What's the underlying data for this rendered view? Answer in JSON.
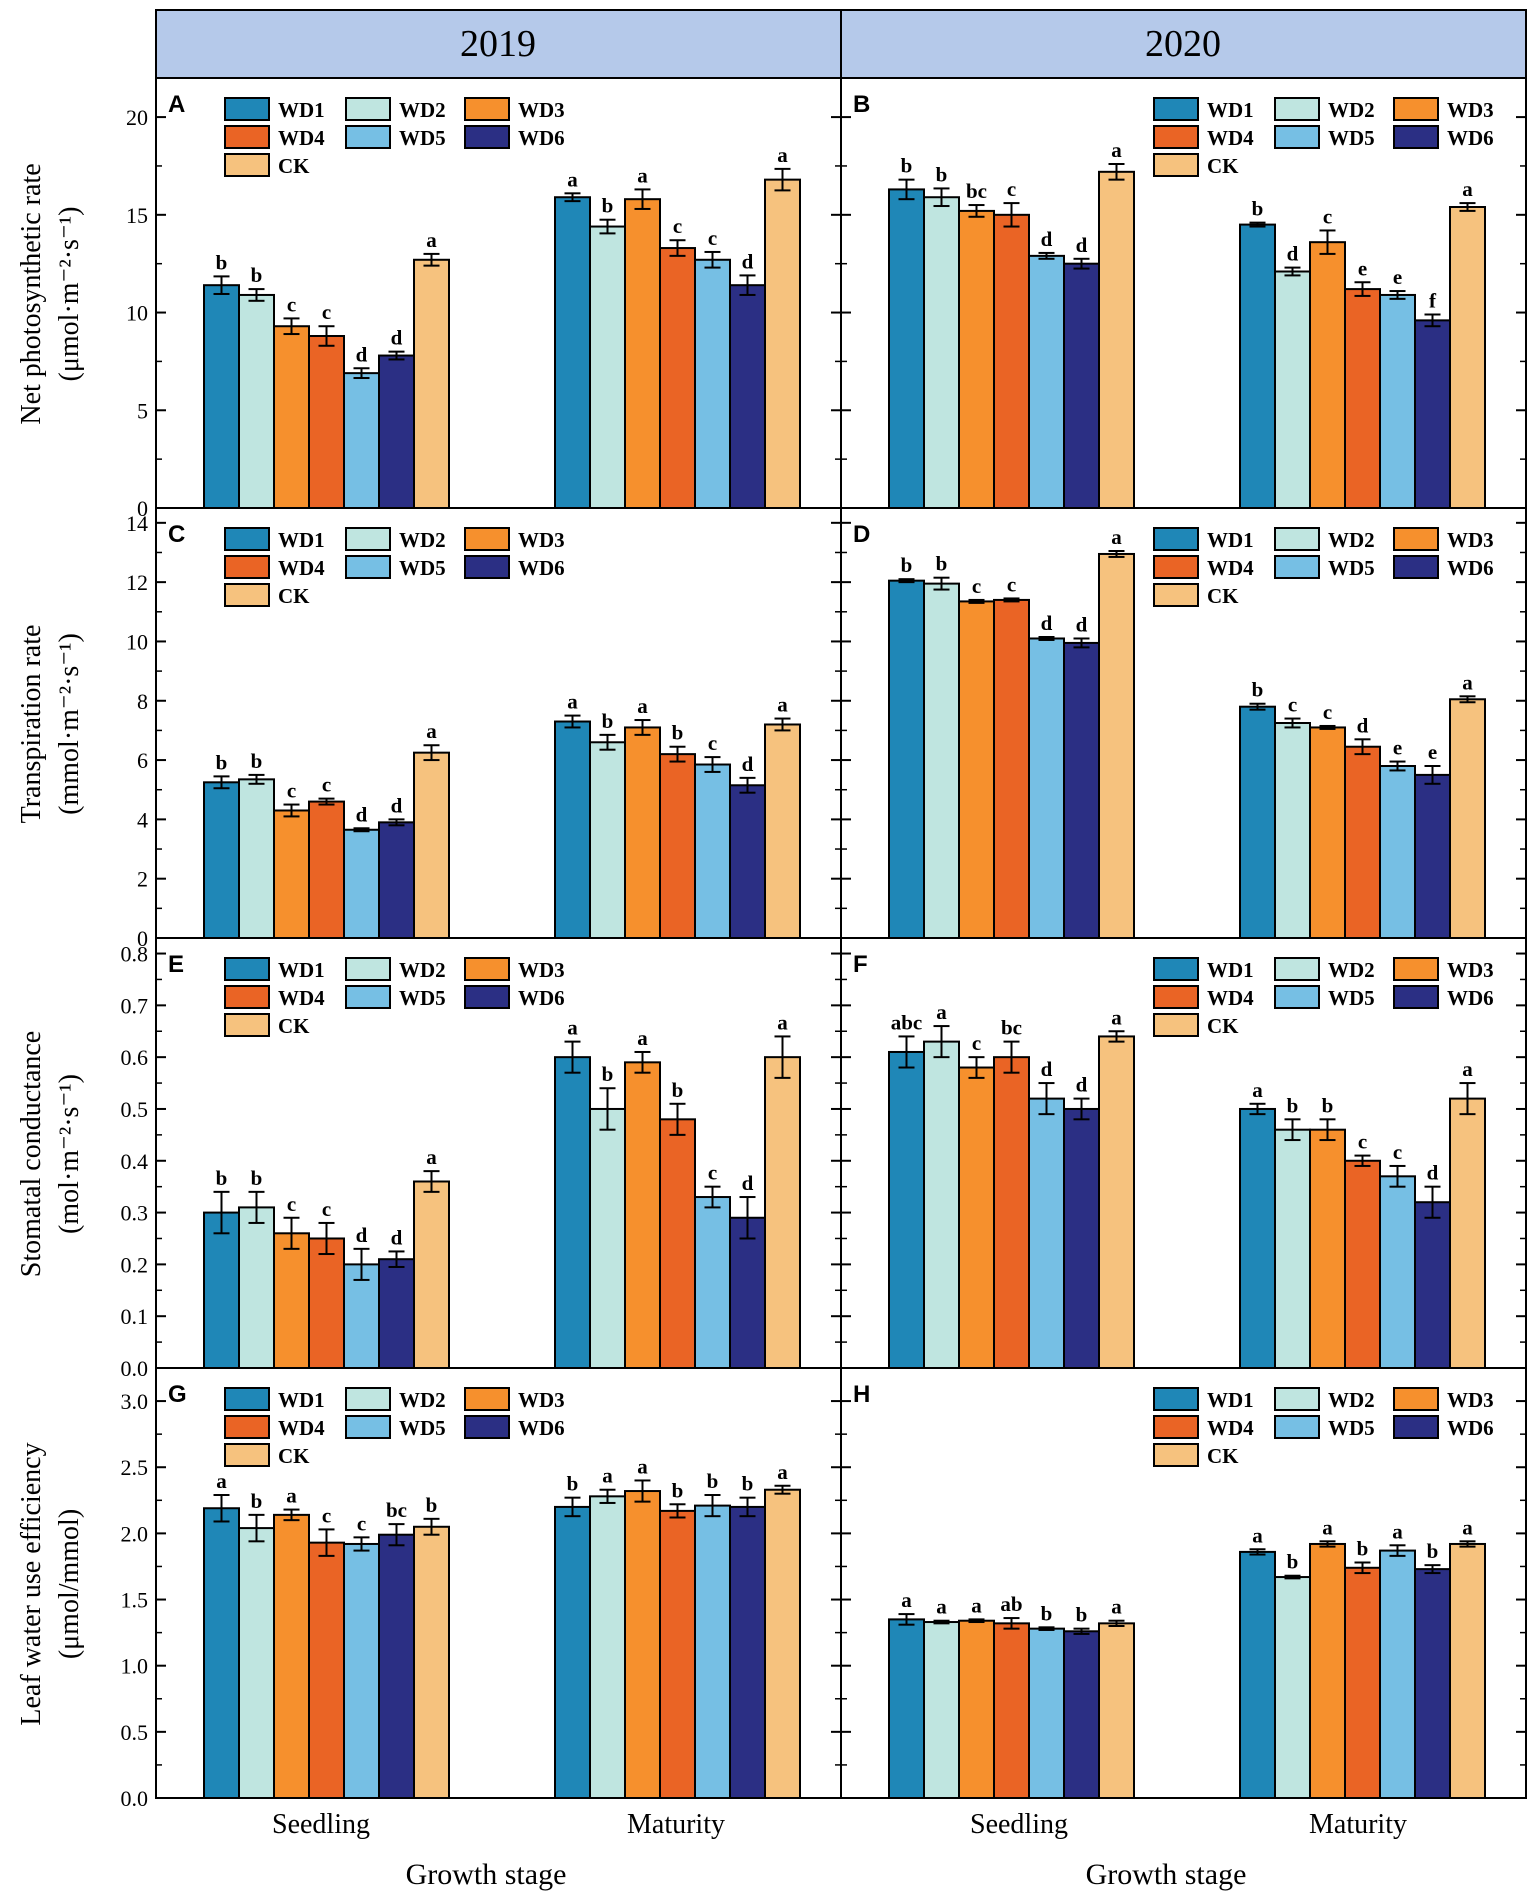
{
  "figure": {
    "headers": [
      "2019",
      "2020"
    ],
    "x_title": "Growth stage",
    "categories": [
      "Seedling",
      "Maturity"
    ],
    "y_titles": [
      [
        "Net photosynthetic rate",
        "(μmol·m⁻²·s⁻¹)"
      ],
      [
        "Transpiration rate",
        "(mmol·m⁻²·s⁻¹)"
      ],
      [
        "Stomatal conductance",
        "(mol·m⁻²·s⁻¹)"
      ],
      [
        "Leaf water use efficiency",
        "(μmol/mmol)"
      ]
    ],
    "legend": [
      "WD1",
      "WD2",
      "WD3",
      "WD4",
      "WD5",
      "WD6",
      "CK"
    ],
    "colors": {
      "WD1": "#1f87b7",
      "WD2": "#bfe5e0",
      "WD3": "#f6902d",
      "WD4": "#ea6425",
      "WD5": "#76bfe4",
      "WD6": "#2b2f84",
      "CK": "#f6c27e",
      "header_bg": "#b5c9ea"
    }
  },
  "chart_data": [
    {
      "panel": "A",
      "type": "bar",
      "year": "2019",
      "metric": "Net photosynthetic rate",
      "ylim": [
        0,
        22
      ],
      "yticks": [
        0,
        5,
        10,
        15,
        20
      ],
      "categories": [
        "Seedling",
        "Maturity"
      ],
      "series": [
        {
          "name": "WD1",
          "values": [
            11.4,
            15.9
          ],
          "errors": [
            0.45,
            0.2
          ],
          "letters": [
            "b",
            "a"
          ]
        },
        {
          "name": "WD2",
          "values": [
            10.9,
            14.4
          ],
          "errors": [
            0.3,
            0.35
          ],
          "letters": [
            "b",
            "b"
          ]
        },
        {
          "name": "WD3",
          "values": [
            9.3,
            15.8
          ],
          "errors": [
            0.4,
            0.5
          ],
          "letters": [
            "c",
            "a"
          ]
        },
        {
          "name": "WD4",
          "values": [
            8.8,
            13.3
          ],
          "errors": [
            0.5,
            0.4
          ],
          "letters": [
            "c",
            "c"
          ]
        },
        {
          "name": "WD5",
          "values": [
            6.9,
            12.7
          ],
          "errors": [
            0.25,
            0.4
          ],
          "letters": [
            "d",
            "c"
          ]
        },
        {
          "name": "WD6",
          "values": [
            7.8,
            11.4
          ],
          "errors": [
            0.2,
            0.5
          ],
          "letters": [
            "d",
            "d"
          ]
        },
        {
          "name": "CK",
          "values": [
            12.7,
            16.8
          ],
          "errors": [
            0.3,
            0.55
          ],
          "letters": [
            "a",
            "a"
          ]
        }
      ]
    },
    {
      "panel": "B",
      "type": "bar",
      "year": "2020",
      "metric": "Net photosynthetic rate",
      "ylim": [
        0,
        22
      ],
      "yticks": [
        0,
        5,
        10,
        15,
        20
      ],
      "categories": [
        "Seedling",
        "Maturity"
      ],
      "series": [
        {
          "name": "WD1",
          "values": [
            16.3,
            14.5
          ],
          "errors": [
            0.5,
            0.1
          ],
          "letters": [
            "b",
            "b"
          ]
        },
        {
          "name": "WD2",
          "values": [
            15.9,
            12.1
          ],
          "errors": [
            0.45,
            0.2
          ],
          "letters": [
            "b",
            "d"
          ]
        },
        {
          "name": "WD3",
          "values": [
            15.2,
            13.6
          ],
          "errors": [
            0.3,
            0.6
          ],
          "letters": [
            "bc",
            "c"
          ]
        },
        {
          "name": "WD4",
          "values": [
            15.0,
            11.2
          ],
          "errors": [
            0.6,
            0.35
          ],
          "letters": [
            "c",
            "e"
          ]
        },
        {
          "name": "WD5",
          "values": [
            12.9,
            10.9
          ],
          "errors": [
            0.15,
            0.2
          ],
          "letters": [
            "d",
            "e"
          ]
        },
        {
          "name": "WD6",
          "values": [
            12.5,
            9.6
          ],
          "errors": [
            0.25,
            0.3
          ],
          "letters": [
            "d",
            "f"
          ]
        },
        {
          "name": "CK",
          "values": [
            17.2,
            15.4
          ],
          "errors": [
            0.4,
            0.2
          ],
          "letters": [
            "a",
            "a"
          ]
        }
      ]
    },
    {
      "panel": "C",
      "type": "bar",
      "year": "2019",
      "metric": "Transpiration rate",
      "ylim": [
        0,
        14.5
      ],
      "yticks": [
        0,
        2,
        4,
        6,
        8,
        10,
        12,
        14
      ],
      "categories": [
        "Seedling",
        "Maturity"
      ],
      "series": [
        {
          "name": "WD1",
          "values": [
            5.25,
            7.3
          ],
          "errors": [
            0.2,
            0.2
          ],
          "letters": [
            "b",
            "a"
          ]
        },
        {
          "name": "WD2",
          "values": [
            5.35,
            6.6
          ],
          "errors": [
            0.15,
            0.25
          ],
          "letters": [
            "b",
            "b"
          ]
        },
        {
          "name": "WD3",
          "values": [
            4.3,
            7.1
          ],
          "errors": [
            0.2,
            0.25
          ],
          "letters": [
            "c",
            "a"
          ]
        },
        {
          "name": "WD4",
          "values": [
            4.6,
            6.2
          ],
          "errors": [
            0.1,
            0.25
          ],
          "letters": [
            "c",
            "b"
          ]
        },
        {
          "name": "WD5",
          "values": [
            3.65,
            5.85
          ],
          "errors": [
            0.05,
            0.25
          ],
          "letters": [
            "d",
            "c"
          ]
        },
        {
          "name": "WD6",
          "values": [
            3.9,
            5.15
          ],
          "errors": [
            0.1,
            0.25
          ],
          "letters": [
            "d",
            "d"
          ]
        },
        {
          "name": "CK",
          "values": [
            6.25,
            7.2
          ],
          "errors": [
            0.25,
            0.2
          ],
          "letters": [
            "a",
            "a"
          ]
        }
      ]
    },
    {
      "panel": "D",
      "type": "bar",
      "year": "2020",
      "metric": "Transpiration rate",
      "ylim": [
        0,
        14.5
      ],
      "yticks": [
        0,
        2,
        4,
        6,
        8,
        10,
        12,
        14
      ],
      "categories": [
        "Seedling",
        "Maturity"
      ],
      "series": [
        {
          "name": "WD1",
          "values": [
            12.05,
            7.8
          ],
          "errors": [
            0.05,
            0.1
          ],
          "letters": [
            "b",
            "b"
          ]
        },
        {
          "name": "WD2",
          "values": [
            11.95,
            7.25
          ],
          "errors": [
            0.2,
            0.15
          ],
          "letters": [
            "b",
            "c"
          ]
        },
        {
          "name": "WD3",
          "values": [
            11.35,
            7.1
          ],
          "errors": [
            0.05,
            0.05
          ],
          "letters": [
            "c",
            "c"
          ]
        },
        {
          "name": "WD4",
          "values": [
            11.4,
            6.45
          ],
          "errors": [
            0.05,
            0.25
          ],
          "letters": [
            "c",
            "d"
          ]
        },
        {
          "name": "WD5",
          "values": [
            10.1,
            5.8
          ],
          "errors": [
            0.05,
            0.15
          ],
          "letters": [
            "d",
            "e"
          ]
        },
        {
          "name": "WD6",
          "values": [
            9.95,
            5.5
          ],
          "errors": [
            0.15,
            0.3
          ],
          "letters": [
            "d",
            "e"
          ]
        },
        {
          "name": "CK",
          "values": [
            12.95,
            8.05
          ],
          "errors": [
            0.1,
            0.1
          ],
          "letters": [
            "a",
            "a"
          ]
        }
      ]
    },
    {
      "panel": "E",
      "type": "bar",
      "year": "2019",
      "metric": "Stomatal conductance",
      "ylim": [
        0,
        0.83
      ],
      "yticks": [
        0,
        0.1,
        0.2,
        0.3,
        0.4,
        0.5,
        0.6,
        0.7,
        0.8
      ],
      "categories": [
        "Seedling",
        "Maturity"
      ],
      "series": [
        {
          "name": "WD1",
          "values": [
            0.3,
            0.6
          ],
          "errors": [
            0.04,
            0.03
          ],
          "letters": [
            "b",
            "a"
          ]
        },
        {
          "name": "WD2",
          "values": [
            0.31,
            0.5
          ],
          "errors": [
            0.03,
            0.04
          ],
          "letters": [
            "b",
            "b"
          ]
        },
        {
          "name": "WD3",
          "values": [
            0.26,
            0.59
          ],
          "errors": [
            0.03,
            0.02
          ],
          "letters": [
            "c",
            "a"
          ]
        },
        {
          "name": "WD4",
          "values": [
            0.25,
            0.48
          ],
          "errors": [
            0.03,
            0.03
          ],
          "letters": [
            "c",
            "b"
          ]
        },
        {
          "name": "WD5",
          "values": [
            0.2,
            0.33
          ],
          "errors": [
            0.03,
            0.02
          ],
          "letters": [
            "d",
            "c"
          ]
        },
        {
          "name": "WD6",
          "values": [
            0.21,
            0.29
          ],
          "errors": [
            0.015,
            0.04
          ],
          "letters": [
            "d",
            "d"
          ]
        },
        {
          "name": "CK",
          "values": [
            0.36,
            0.6
          ],
          "errors": [
            0.02,
            0.04
          ],
          "letters": [
            "a",
            "a"
          ]
        }
      ]
    },
    {
      "panel": "F",
      "type": "bar",
      "year": "2020",
      "metric": "Stomatal conductance",
      "ylim": [
        0,
        0.83
      ],
      "yticks": [
        0,
        0.1,
        0.2,
        0.3,
        0.4,
        0.5,
        0.6,
        0.7,
        0.8
      ],
      "categories": [
        "Seedling",
        "Maturity"
      ],
      "series": [
        {
          "name": "WD1",
          "values": [
            0.61,
            0.5
          ],
          "errors": [
            0.03,
            0.01
          ],
          "letters": [
            "abc",
            "a"
          ]
        },
        {
          "name": "WD2",
          "values": [
            0.63,
            0.46
          ],
          "errors": [
            0.03,
            0.02
          ],
          "letters": [
            "a",
            "b"
          ]
        },
        {
          "name": "WD3",
          "values": [
            0.58,
            0.46
          ],
          "errors": [
            0.02,
            0.02
          ],
          "letters": [
            "c",
            "b"
          ]
        },
        {
          "name": "WD4",
          "values": [
            0.6,
            0.4
          ],
          "errors": [
            0.03,
            0.01
          ],
          "letters": [
            "bc",
            "c"
          ]
        },
        {
          "name": "WD5",
          "values": [
            0.52,
            0.37
          ],
          "errors": [
            0.03,
            0.02
          ],
          "letters": [
            "d",
            "c"
          ]
        },
        {
          "name": "WD6",
          "values": [
            0.5,
            0.32
          ],
          "errors": [
            0.02,
            0.03
          ],
          "letters": [
            "d",
            "d"
          ]
        },
        {
          "name": "CK",
          "values": [
            0.64,
            0.52
          ],
          "errors": [
            0.01,
            0.03
          ],
          "letters": [
            "a",
            "a"
          ]
        }
      ]
    },
    {
      "panel": "G",
      "type": "bar",
      "year": "2019",
      "metric": "Leaf water use efficiency",
      "ylim": [
        0,
        3.25
      ],
      "yticks": [
        0.0,
        0.5,
        1.0,
        1.5,
        2.0,
        2.5,
        3.0
      ],
      "categories": [
        "Seedling",
        "Maturity"
      ],
      "series": [
        {
          "name": "WD1",
          "values": [
            2.19,
            2.2
          ],
          "errors": [
            0.1,
            0.07
          ],
          "letters": [
            "a",
            "b"
          ]
        },
        {
          "name": "WD2",
          "values": [
            2.04,
            2.28
          ],
          "errors": [
            0.1,
            0.05
          ],
          "letters": [
            "b",
            "a"
          ]
        },
        {
          "name": "WD3",
          "values": [
            2.14,
            2.32
          ],
          "errors": [
            0.04,
            0.08
          ],
          "letters": [
            "a",
            "a"
          ]
        },
        {
          "name": "WD4",
          "values": [
            1.93,
            2.17
          ],
          "errors": [
            0.1,
            0.05
          ],
          "letters": [
            "c",
            "b"
          ]
        },
        {
          "name": "WD5",
          "values": [
            1.92,
            2.21
          ],
          "errors": [
            0.05,
            0.08
          ],
          "letters": [
            "c",
            "b"
          ]
        },
        {
          "name": "WD6",
          "values": [
            1.99,
            2.2
          ],
          "errors": [
            0.08,
            0.07
          ],
          "letters": [
            "bc",
            "b"
          ]
        },
        {
          "name": "CK",
          "values": [
            2.05,
            2.33
          ],
          "errors": [
            0.06,
            0.03
          ],
          "letters": [
            "b",
            "a"
          ]
        }
      ]
    },
    {
      "panel": "H",
      "type": "bar",
      "year": "2020",
      "metric": "Leaf water use efficiency",
      "ylim": [
        0,
        3.25
      ],
      "yticks": [
        0.0,
        0.5,
        1.0,
        1.5,
        2.0,
        2.5,
        3.0
      ],
      "categories": [
        "Seedling",
        "Maturity"
      ],
      "series": [
        {
          "name": "WD1",
          "values": [
            1.35,
            1.86
          ],
          "errors": [
            0.04,
            0.02
          ],
          "letters": [
            "a",
            "a"
          ]
        },
        {
          "name": "WD2",
          "values": [
            1.33,
            1.67
          ],
          "errors": [
            0.01,
            0.01
          ],
          "letters": [
            "a",
            "b"
          ]
        },
        {
          "name": "WD3",
          "values": [
            1.34,
            1.92
          ],
          "errors": [
            0.01,
            0.02
          ],
          "letters": [
            "a",
            "a"
          ]
        },
        {
          "name": "WD4",
          "values": [
            1.32,
            1.74
          ],
          "errors": [
            0.04,
            0.04
          ],
          "letters": [
            "ab",
            "b"
          ]
        },
        {
          "name": "WD5",
          "values": [
            1.28,
            1.87
          ],
          "errors": [
            0.01,
            0.04
          ],
          "letters": [
            "b",
            "a"
          ]
        },
        {
          "name": "WD6",
          "values": [
            1.26,
            1.73
          ],
          "errors": [
            0.02,
            0.03
          ],
          "letters": [
            "b",
            "b"
          ]
        },
        {
          "name": "CK",
          "values": [
            1.32,
            1.92
          ],
          "errors": [
            0.02,
            0.02
          ],
          "letters": [
            "a",
            "a"
          ]
        }
      ]
    }
  ]
}
